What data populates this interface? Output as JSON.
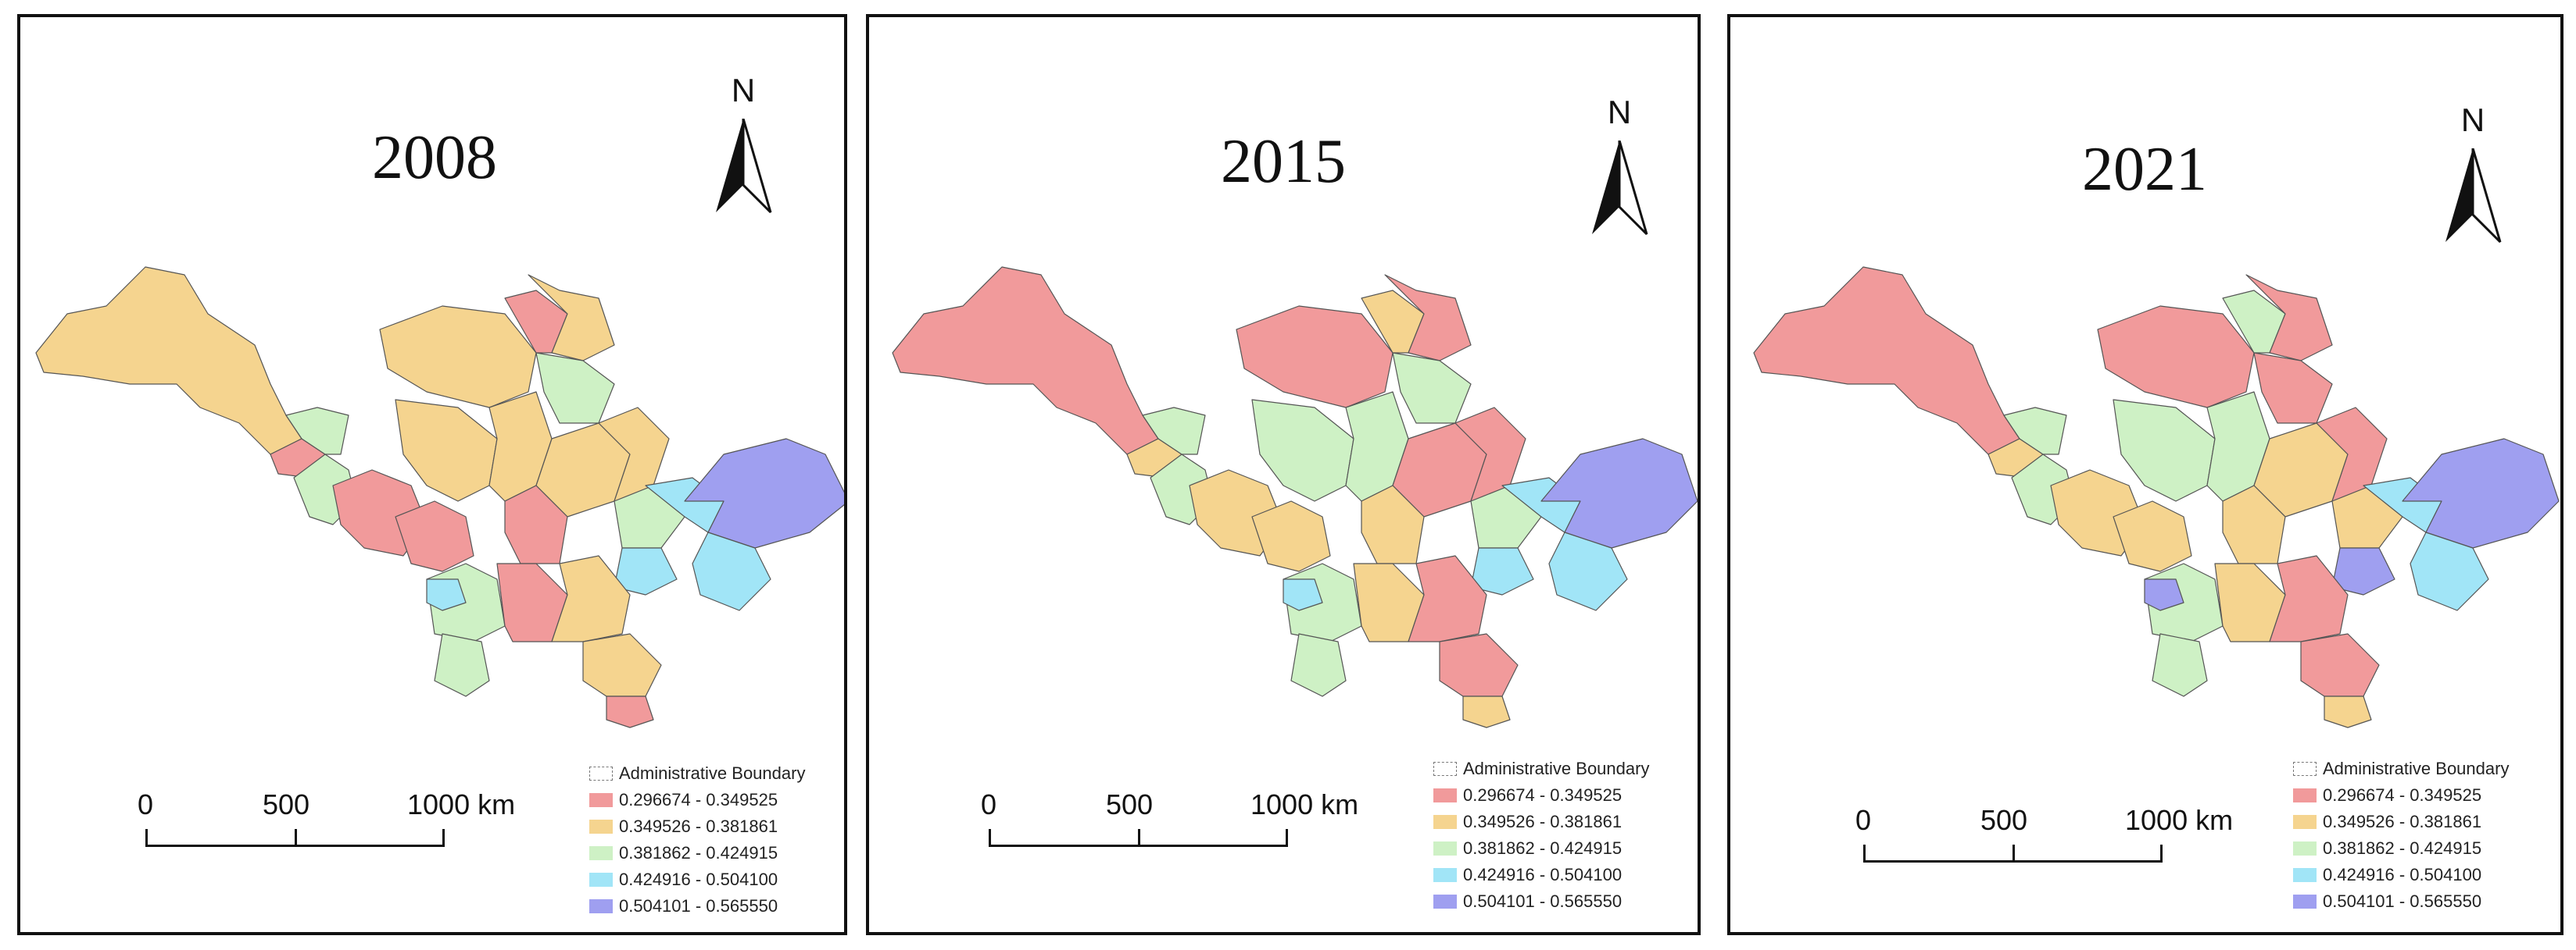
{
  "panels": [
    {
      "year": "2008",
      "colors": [
        "#f5d48f",
        "#f19a9b",
        "#cef1c5",
        "#a1e5f7",
        "#9f9ff0"
      ]
    },
    {
      "year": "2015",
      "colors": [
        "#f19a9b",
        "#f5d48f",
        "#cef1c5",
        "#a1e5f7",
        "#9f9ff0"
      ]
    },
    {
      "year": "2021",
      "colors": [
        "#f19a9b",
        "#cef1c5",
        "#f5d48f",
        "#a1e5f7",
        "#9f9ff0"
      ]
    }
  ],
  "north_label": "N",
  "scale": {
    "labels": [
      "0",
      "500",
      "1000 km"
    ]
  },
  "legend": {
    "boundary_label": "Administrative Boundary",
    "classes": [
      {
        "label": "0.296674 - 0.349525",
        "color": "#f19a9b"
      },
      {
        "label": "0.349526 - 0.381861",
        "color": "#f5d48f"
      },
      {
        "label": "0.381862 - 0.424915",
        "color": "#cef1c5"
      },
      {
        "label": "0.424916 - 0.504100",
        "color": "#a1e5f7"
      },
      {
        "label": "0.504101 - 0.565550",
        "color": "#9f9ff0"
      }
    ]
  }
}
